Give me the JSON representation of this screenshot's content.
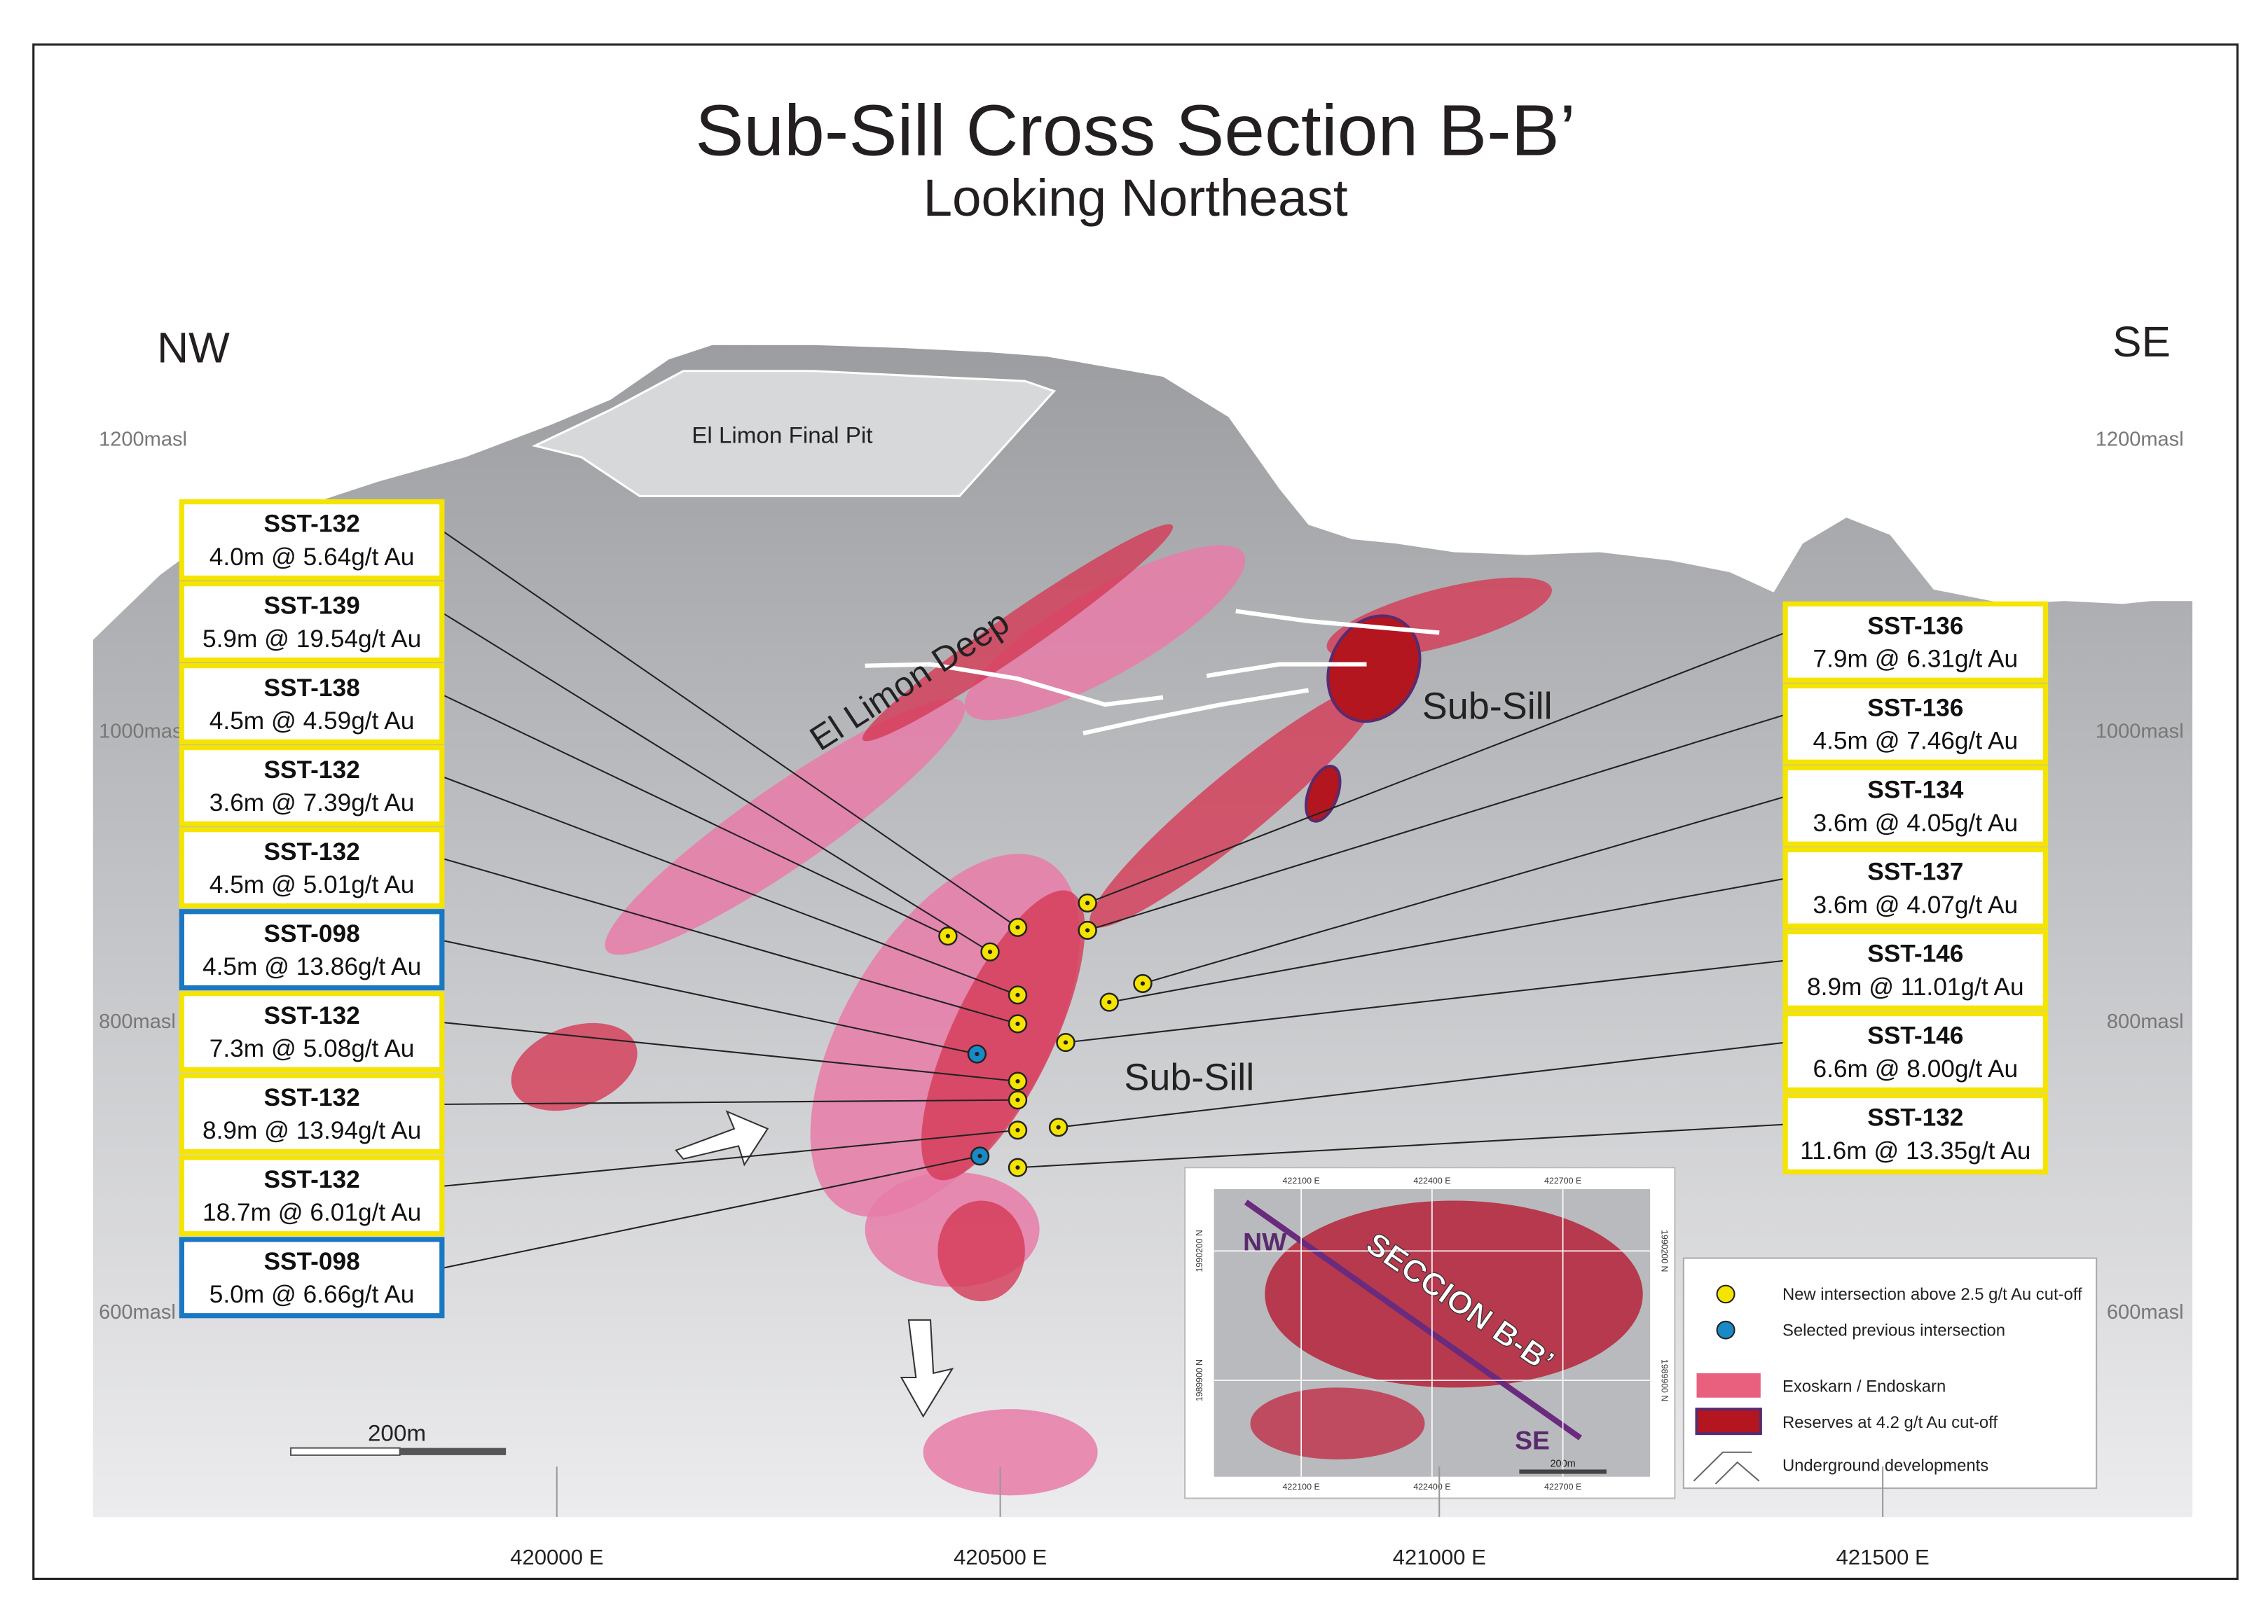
{
  "title": "Sub-Sill Cross Section B-B’",
  "subtitle": "Looking Northeast",
  "directions": [
    "NW",
    "SE"
  ],
  "elevations": [
    "1200masl",
    "1000masl",
    "800masl",
    "600masl"
  ],
  "eastings": [
    "420000 E",
    "420500 E",
    "421000 E",
    "421500 E"
  ],
  "labels": {
    "pit": "El Limon Final Pit",
    "deep": "El Limon Deep",
    "subsill_upper": "Sub-Sill",
    "subsill_lower": "Sub-Sill"
  },
  "intersections_left": [
    {
      "hole": "SST-132",
      "result": "4.0m @ 5.64g/t Au",
      "kind": "new"
    },
    {
      "hole": "SST-139",
      "result": "5.9m @ 19.54g/t Au",
      "kind": "new"
    },
    {
      "hole": "SST-138",
      "result": "4.5m @ 4.59g/t Au",
      "kind": "new"
    },
    {
      "hole": "SST-132",
      "result": "3.6m @ 7.39g/t Au",
      "kind": "new"
    },
    {
      "hole": "SST-132",
      "result": "4.5m @ 5.01g/t Au",
      "kind": "new"
    },
    {
      "hole": "SST-098",
      "result": "4.5m @ 13.86g/t Au",
      "kind": "previous"
    },
    {
      "hole": "SST-132",
      "result": "7.3m @ 5.08g/t Au",
      "kind": "new"
    },
    {
      "hole": "SST-132",
      "result": "8.9m @ 13.94g/t Au",
      "kind": "new"
    },
    {
      "hole": "SST-132",
      "result": "18.7m @ 6.01g/t Au",
      "kind": "new"
    },
    {
      "hole": "SST-098",
      "result": "5.0m @ 6.66g/t Au",
      "kind": "previous"
    }
  ],
  "intersections_right": [
    {
      "hole": "SST-136",
      "result": "7.9m @ 6.31g/t Au",
      "kind": "new"
    },
    {
      "hole": "SST-136",
      "result": "4.5m @ 7.46g/t Au",
      "kind": "new"
    },
    {
      "hole": "SST-134",
      "result": "3.6m @ 4.05g/t Au",
      "kind": "new"
    },
    {
      "hole": "SST-137",
      "result": "3.6m @ 4.07g/t Au",
      "kind": "new"
    },
    {
      "hole": "SST-146",
      "result": "8.9m @ 11.01g/t Au",
      "kind": "new"
    },
    {
      "hole": "SST-146",
      "result": "6.6m @ 8.00g/t Au",
      "kind": "new"
    },
    {
      "hole": "SST-132",
      "result": "11.6m @ 13.35g/t Au",
      "kind": "new"
    }
  ],
  "scale_bar": "200m",
  "legend": [
    "New intersection above 2.5 g/t Au cut-off",
    "Selected previous intersection",
    "Exoskarn / Endoskarn",
    "Reserves at 4.2 g/t Au cut-off",
    "Underground developments"
  ],
  "inset": {
    "nw": "NW",
    "se": "SE",
    "section": "SECCION B-B’",
    "scale": "200m",
    "eastings": [
      "422100 E",
      "422400 E",
      "422700 E"
    ],
    "northings": [
      "1990200 N",
      "1989900 N"
    ]
  }
}
